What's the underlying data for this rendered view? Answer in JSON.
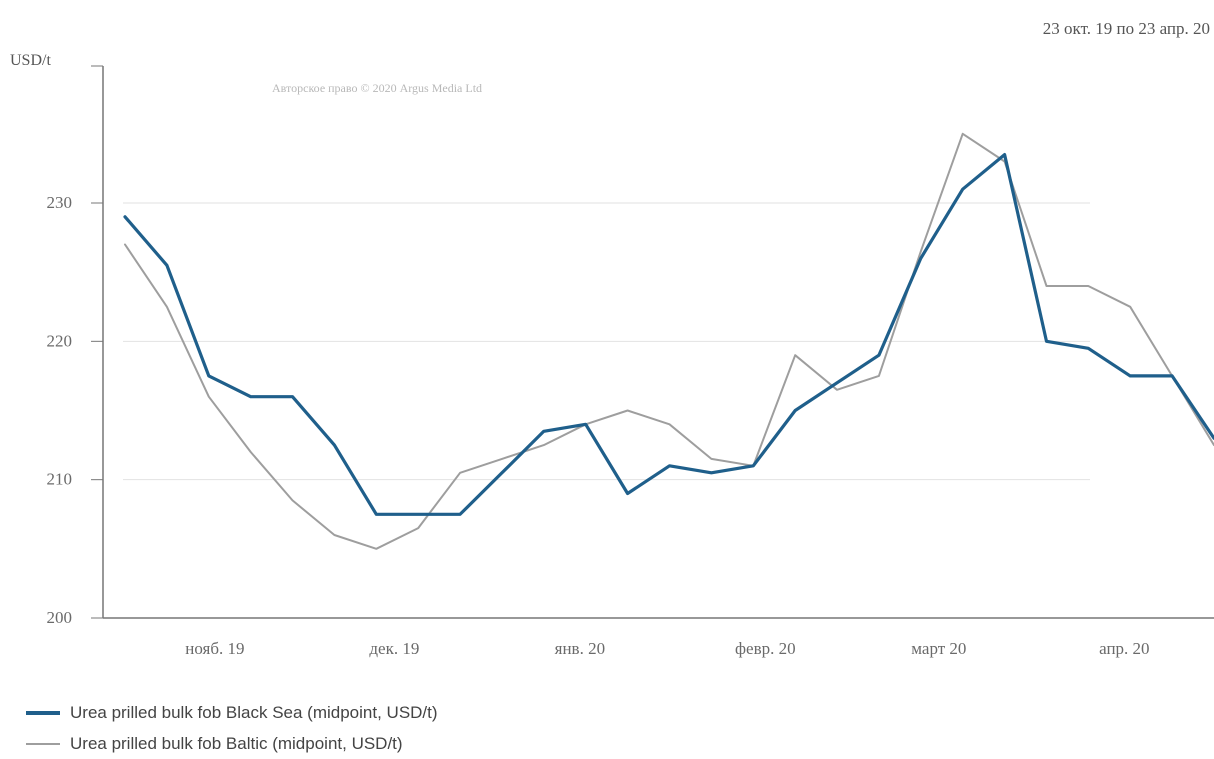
{
  "header": {
    "date_range": "23 окт. 19 по 23 апр. 20",
    "watermark": "Авторское право © 2020 Argus Media Ltd"
  },
  "chart_data": {
    "type": "line",
    "title": "",
    "xlabel": "",
    "ylabel": "USD/t",
    "ylim": [
      200,
      240
    ],
    "yticks": [
      200,
      210,
      220,
      230
    ],
    "xlim": [
      "2019-10-23",
      "2020-04-23"
    ],
    "x_tick_labels": [
      {
        "label": "нояб. 19",
        "date": "2019-11-01"
      },
      {
        "label": "дек. 19",
        "date": "2019-12-01"
      },
      {
        "label": "янв. 20",
        "date": "2020-01-01"
      },
      {
        "label": "февр. 20",
        "date": "2020-02-01"
      },
      {
        "label": "март 20",
        "date": "2020-03-01"
      },
      {
        "label": "апр. 20",
        "date": "2020-04-01"
      }
    ],
    "grid": true,
    "legend": "bottom-left",
    "series": [
      {
        "name": "Urea prilled bulk fob Black Sea (midpoint, USD/t)",
        "color": "#1f5f8b",
        "points": [
          [
            "2019-10-24",
            229.0
          ],
          [
            "2019-10-31",
            225.5
          ],
          [
            "2019-11-07",
            217.5
          ],
          [
            "2019-11-14",
            216.0
          ],
          [
            "2019-11-21",
            216.0
          ],
          [
            "2019-11-28",
            212.5
          ],
          [
            "2019-12-05",
            207.5
          ],
          [
            "2019-12-12",
            207.5
          ],
          [
            "2019-12-19",
            207.5
          ],
          [
            "2019-12-26",
            210.5
          ],
          [
            "2020-01-02",
            213.5
          ],
          [
            "2020-01-09",
            214.0
          ],
          [
            "2020-01-16",
            209.0
          ],
          [
            "2020-01-23",
            211.0
          ],
          [
            "2020-01-30",
            210.5
          ],
          [
            "2020-02-06",
            211.0
          ],
          [
            "2020-02-13",
            215.0
          ],
          [
            "2020-02-20",
            217.0
          ],
          [
            "2020-02-27",
            219.0
          ],
          [
            "2020-03-05",
            226.0
          ],
          [
            "2020-03-12",
            231.0
          ],
          [
            "2020-03-19",
            233.5
          ],
          [
            "2020-03-26",
            220.0
          ],
          [
            "2020-04-02",
            219.5
          ],
          [
            "2020-04-09",
            217.5
          ],
          [
            "2020-04-16",
            217.5
          ],
          [
            "2020-04-23",
            213.0
          ]
        ]
      },
      {
        "name": "Urea prilled bulk fob Baltic (midpoint, USD/t)",
        "color": "#9e9e9e",
        "points": [
          [
            "2019-10-24",
            227.0
          ],
          [
            "2019-10-31",
            222.5
          ],
          [
            "2019-11-07",
            216.0
          ],
          [
            "2019-11-14",
            212.0
          ],
          [
            "2019-11-21",
            208.5
          ],
          [
            "2019-11-28",
            206.0
          ],
          [
            "2019-12-05",
            205.0
          ],
          [
            "2019-12-12",
            206.5
          ],
          [
            "2019-12-19",
            210.5
          ],
          [
            "2019-12-26",
            211.5
          ],
          [
            "2020-01-02",
            212.5
          ],
          [
            "2020-01-09",
            214.0
          ],
          [
            "2020-01-16",
            215.0
          ],
          [
            "2020-01-23",
            214.0
          ],
          [
            "2020-01-30",
            211.5
          ],
          [
            "2020-02-06",
            211.0
          ],
          [
            "2020-02-13",
            219.0
          ],
          [
            "2020-02-20",
            216.5
          ],
          [
            "2020-02-27",
            217.5
          ],
          [
            "2020-03-05",
            226.5
          ],
          [
            "2020-03-12",
            235.0
          ],
          [
            "2020-03-19",
            233.0
          ],
          [
            "2020-03-26",
            224.0
          ],
          [
            "2020-04-02",
            224.0
          ],
          [
            "2020-04-09",
            222.5
          ],
          [
            "2020-04-16",
            217.5
          ],
          [
            "2020-04-23",
            212.5
          ]
        ]
      }
    ]
  }
}
